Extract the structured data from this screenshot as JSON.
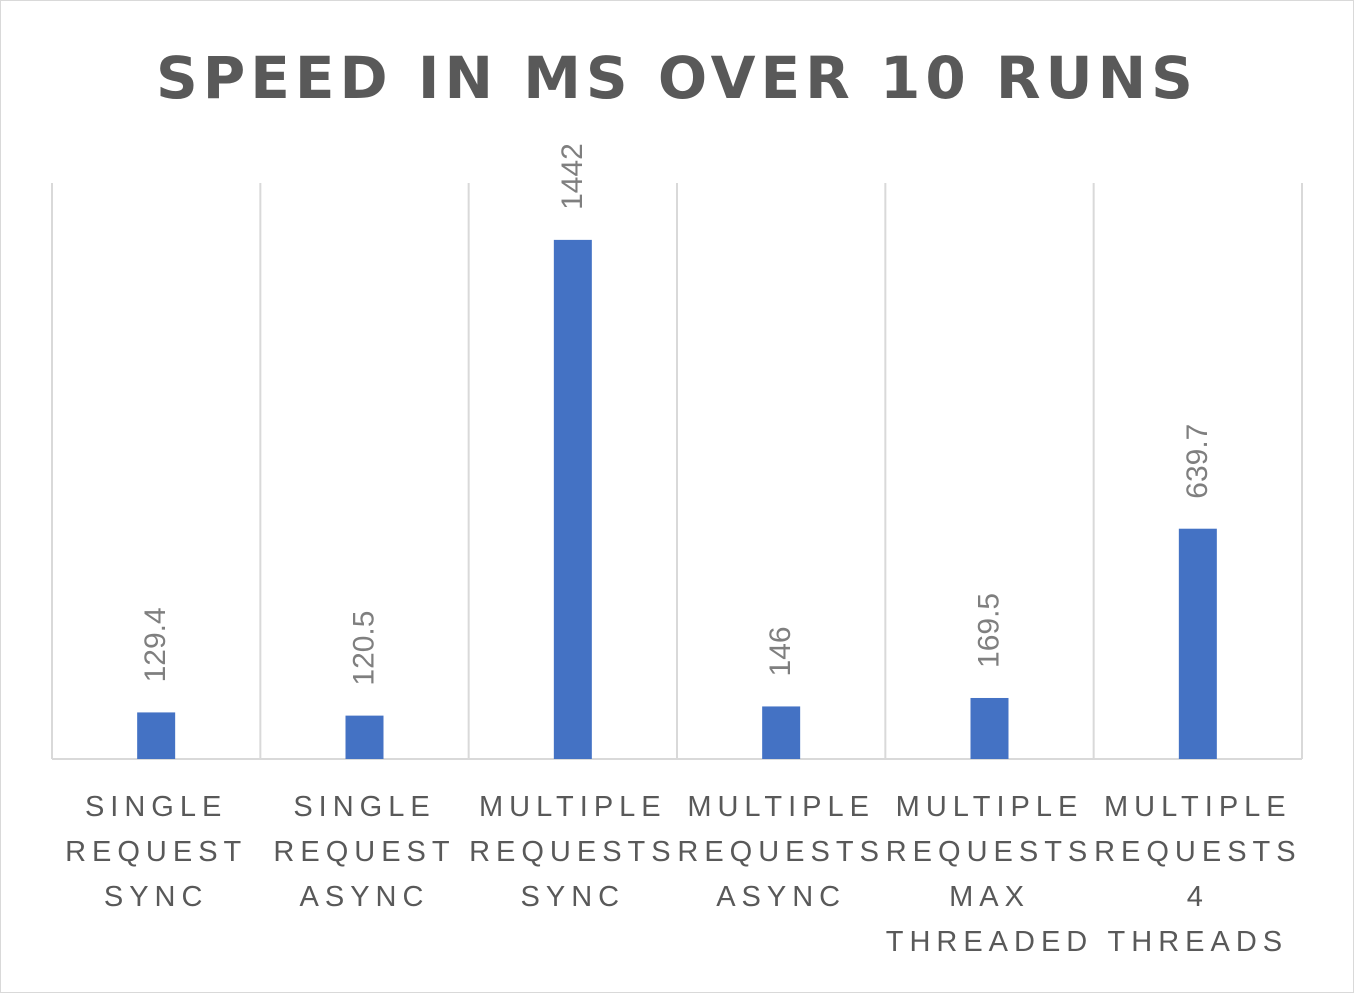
{
  "chart_data": {
    "type": "bar",
    "title": "SPEED IN MS OVER 10 RUNS",
    "categories": [
      [
        "SINGLE",
        "REQUEST",
        "SYNC"
      ],
      [
        "SINGLE",
        "REQUEST",
        "ASYNC"
      ],
      [
        "MULTIPLE",
        "REQUESTS",
        "SYNC"
      ],
      [
        "MULTIPLE",
        "REQUESTS",
        "ASYNC"
      ],
      [
        "MULTIPLE",
        "REQUESTS",
        "MAX",
        "THREADED"
      ],
      [
        "MULTIPLE",
        "REQUESTS",
        "4",
        "THREADS"
      ]
    ],
    "values": [
      129.4,
      120.5,
      1442,
      146,
      169.5,
      639.7
    ],
    "data_labels": [
      "129.4",
      "120.5",
      "1442",
      "146",
      "169.5",
      "639.7"
    ],
    "xlabel": "",
    "ylabel": "",
    "ylim": [
      0,
      1600
    ],
    "grid": "vertical category separators",
    "legend": "none",
    "colors": {
      "bar": "#4472c4",
      "grid": "#d9d9d9",
      "text": "#595959",
      "data_label": "#7f7f7f"
    }
  }
}
